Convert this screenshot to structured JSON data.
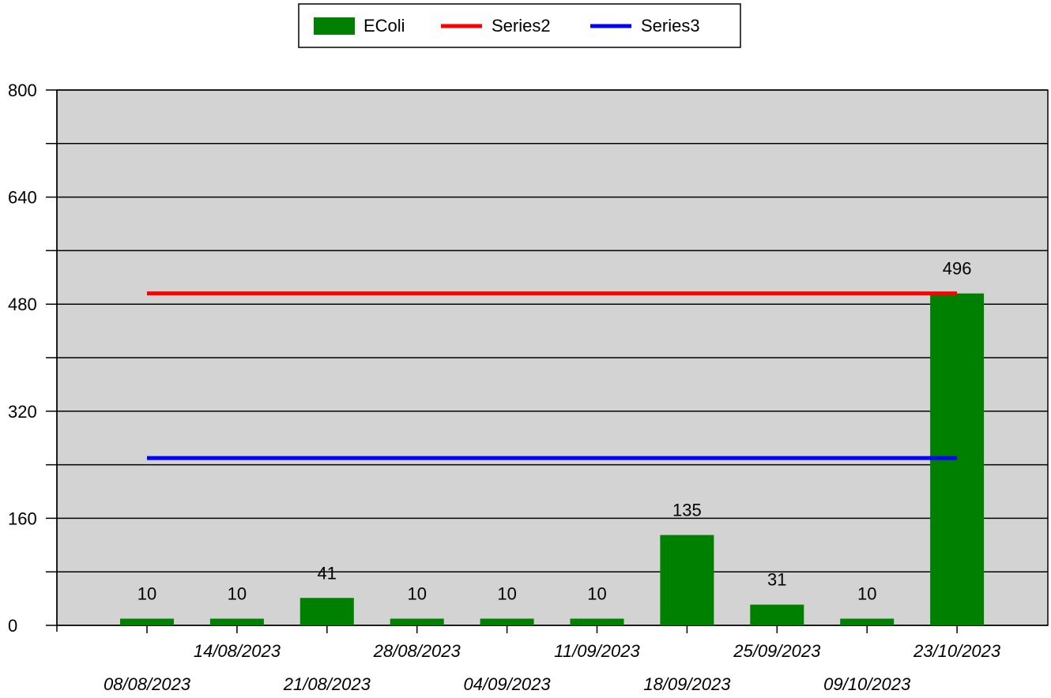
{
  "chart_data": {
    "type": "bar",
    "categories": [
      "08/08/2023",
      "14/08/2023",
      "21/08/2023",
      "28/08/2023",
      "04/09/2023",
      "11/09/2023",
      "18/09/2023",
      "25/09/2023",
      "09/10/2023",
      "23/10/2023"
    ],
    "series": [
      {
        "name": "EColi",
        "type": "bar",
        "color": "#008000",
        "values": [
          10,
          10,
          41,
          10,
          10,
          10,
          135,
          31,
          10,
          496
        ]
      },
      {
        "name": "Series2",
        "type": "line",
        "color": "#ff0000",
        "values": [
          496,
          496,
          496,
          496,
          496,
          496,
          496,
          496,
          496,
          496
        ]
      },
      {
        "name": "Series3",
        "type": "line",
        "color": "#0000ff",
        "values": [
          250,
          250,
          250,
          250,
          250,
          250,
          250,
          250,
          250,
          250
        ]
      }
    ],
    "data_labels": [
      "10",
      "10",
      "41",
      "10",
      "10",
      "10",
      "135",
      "31",
      "10",
      "496"
    ],
    "ylim": [
      0,
      800
    ],
    "y_ticks": [
      0,
      160,
      320,
      480,
      640,
      800
    ],
    "y_tick_labels": [
      "0",
      "160",
      "320",
      "480",
      "640",
      "800"
    ],
    "y_gridlines": [
      0,
      80,
      160,
      240,
      320,
      400,
      480,
      560,
      640,
      720,
      800
    ],
    "grid": true,
    "legend_position": "top-center",
    "plot_background": "#d3d3d3",
    "title": "",
    "xlabel": "",
    "ylabel": ""
  }
}
